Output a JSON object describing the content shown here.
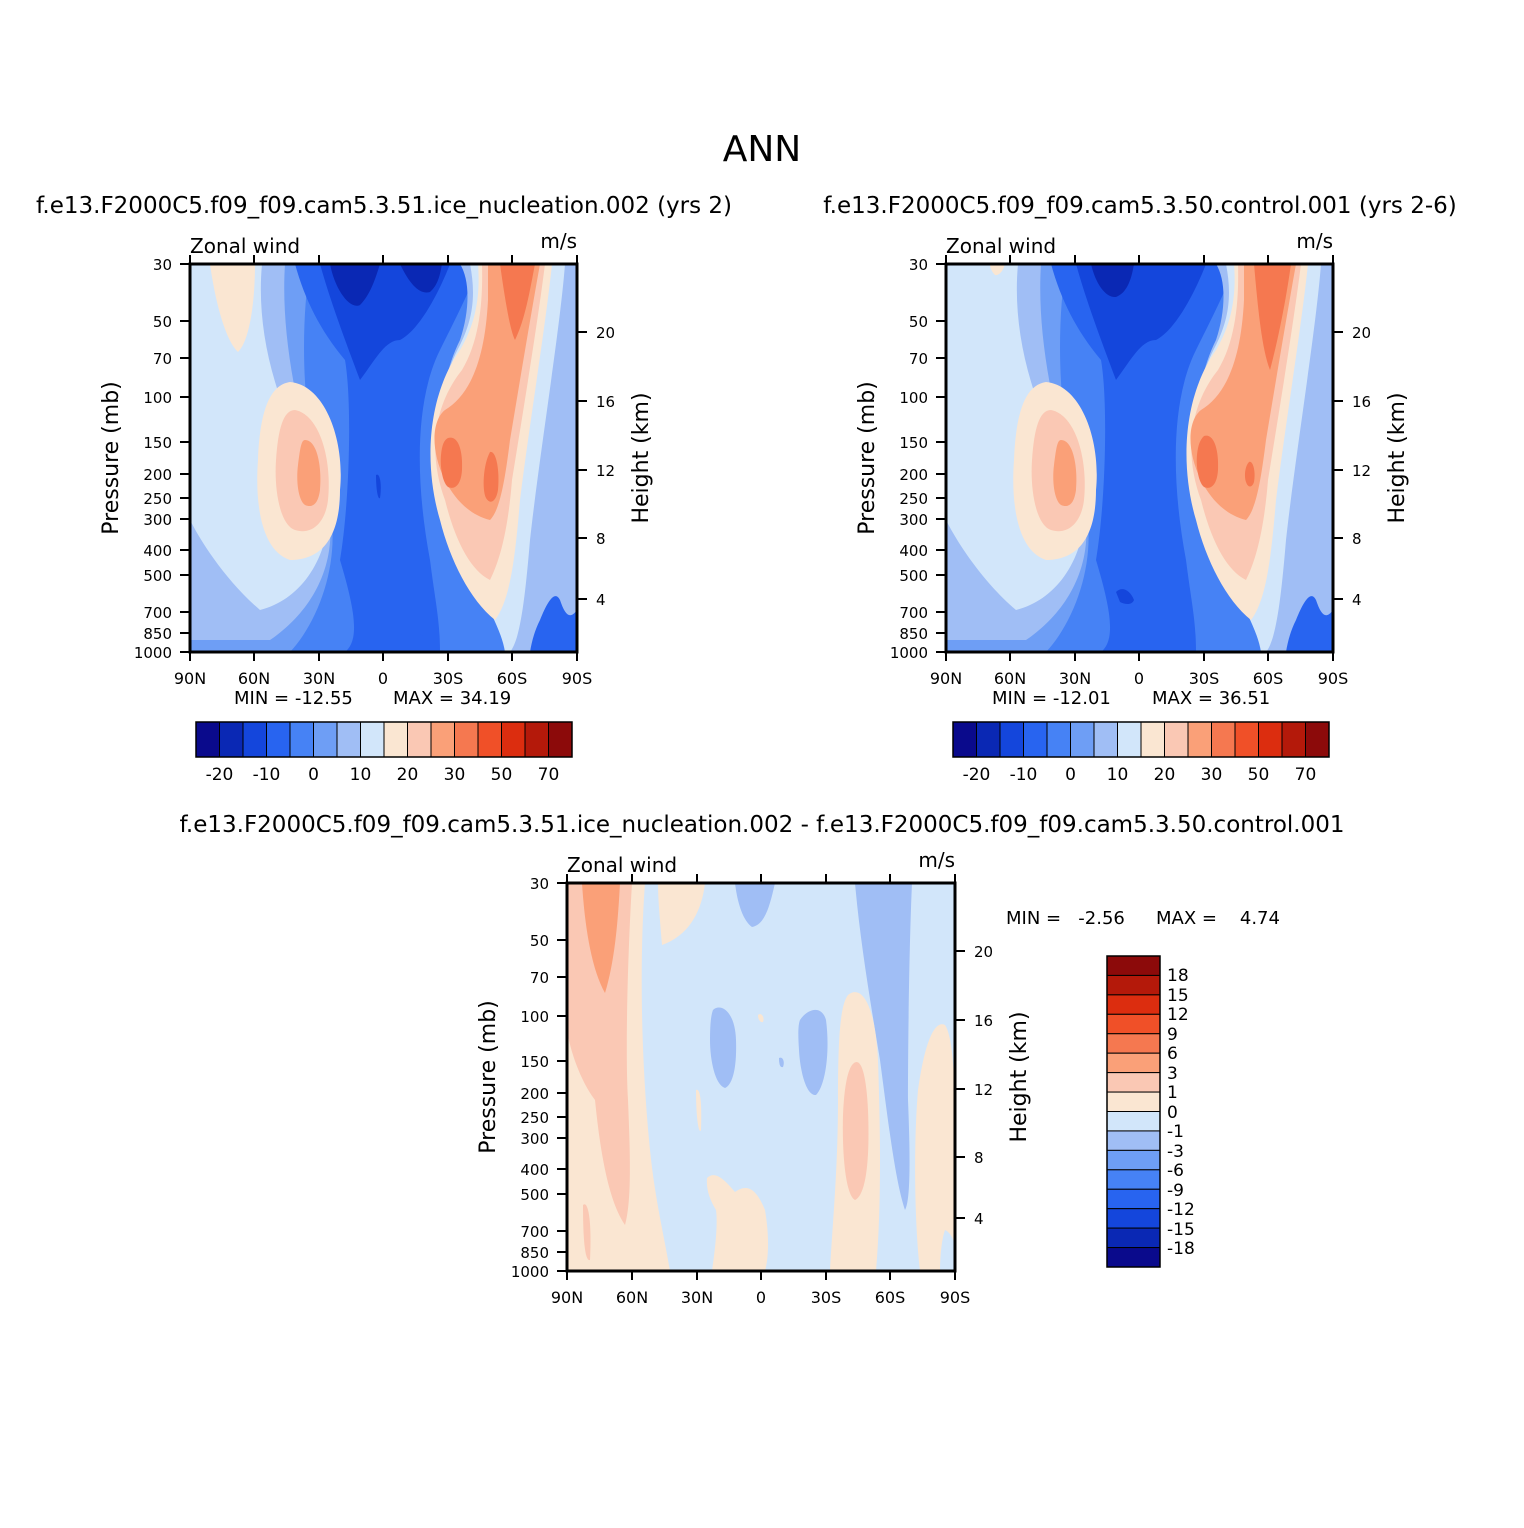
{
  "figure": {
    "season_title": "ANN",
    "colors": {
      "axis": "#000000",
      "background": "#ffffff"
    }
  },
  "chart_data": [
    {
      "id": "test",
      "type": "heatmap",
      "case_title": "f.e13.F2000C5.f09_f09.cam5.3.51.ice_nucleation.002 (yrs 2)",
      "variable_label": "Zonal wind",
      "units_label": "m/s",
      "ylabel": "Pressure (mb)",
      "ylabel_right": "Height (km)",
      "xticks": [
        "90N",
        "60N",
        "30N",
        "0",
        "30S",
        "60S",
        "90S"
      ],
      "yticks": [
        "30",
        "50",
        "70",
        "100",
        "150",
        "200",
        "250",
        "300",
        "400",
        "500",
        "700",
        "850",
        "1000"
      ],
      "right_ticks": [
        "20",
        "16",
        "12",
        "8",
        "4"
      ],
      "min_label": "MIN = -12.55",
      "max_label": "MAX = 34.19",
      "min": -12.55,
      "max": 34.19,
      "colorbar_labels": [
        "-20",
        "-10",
        "0",
        "10",
        "20",
        "30",
        "50",
        "70"
      ],
      "colorbar_colors": [
        "#0a0a8c",
        "#0a28b4",
        "#1446dc",
        "#2864f0",
        "#4682f5",
        "#6e9ef5",
        "#a0bef5",
        "#d2e6fa",
        "#fae6d2",
        "#fac8b4",
        "#faa078",
        "#f57850",
        "#f05028",
        "#dc2d0f",
        "#b4190a",
        "#8c0a0a"
      ]
    },
    {
      "id": "control",
      "type": "heatmap",
      "case_title": "f.e13.F2000C5.f09_f09.cam5.3.50.control.001 (yrs 2-6)",
      "variable_label": "Zonal wind",
      "units_label": "m/s",
      "ylabel": "Pressure (mb)",
      "ylabel_right": "Height (km)",
      "xticks": [
        "90N",
        "60N",
        "30N",
        "0",
        "30S",
        "60S",
        "90S"
      ],
      "yticks": [
        "30",
        "50",
        "70",
        "100",
        "150",
        "200",
        "250",
        "300",
        "400",
        "500",
        "700",
        "850",
        "1000"
      ],
      "right_ticks": [
        "20",
        "16",
        "12",
        "8",
        "4"
      ],
      "min_label": "MIN = -12.01",
      "max_label": "MAX = 36.51",
      "min": -12.01,
      "max": 36.51,
      "colorbar_labels": [
        "-20",
        "-10",
        "0",
        "10",
        "20",
        "30",
        "50",
        "70"
      ],
      "colorbar_colors": [
        "#0a0a8c",
        "#0a28b4",
        "#1446dc",
        "#2864f0",
        "#4682f5",
        "#6e9ef5",
        "#a0bef5",
        "#d2e6fa",
        "#fae6d2",
        "#fac8b4",
        "#faa078",
        "#f57850",
        "#f05028",
        "#dc2d0f",
        "#b4190a",
        "#8c0a0a"
      ]
    },
    {
      "id": "diff",
      "type": "heatmap",
      "case_title": "f.e13.F2000C5.f09_f09.cam5.3.51.ice_nucleation.002 - f.e13.F2000C5.f09_f09.cam5.3.50.control.001",
      "variable_label": "Zonal wind",
      "units_label": "m/s",
      "ylabel": "Pressure (mb)",
      "ylabel_right": "Height (km)",
      "xticks": [
        "90N",
        "60N",
        "30N",
        "0",
        "30S",
        "60S",
        "90S"
      ],
      "yticks": [
        "30",
        "50",
        "70",
        "100",
        "150",
        "200",
        "250",
        "300",
        "400",
        "500",
        "700",
        "850",
        "1000"
      ],
      "right_ticks": [
        "20",
        "16",
        "12",
        "8",
        "4"
      ],
      "min_label": "MIN =   -2.56",
      "max_label": "MAX =    4.74",
      "min": -2.56,
      "max": 4.74,
      "colorbar_labels": [
        "18",
        "15",
        "12",
        "9",
        "6",
        "3",
        "1",
        "0",
        "-1",
        "-3",
        "-6",
        "-9",
        "-12",
        "-15",
        "-18"
      ],
      "colorbar_colors": [
        "#8c0a0a",
        "#b4190a",
        "#dc2d0f",
        "#f05028",
        "#f57850",
        "#faa078",
        "#fac8b4",
        "#fae6d2",
        "#d2e6fa",
        "#a0bef5",
        "#6e9ef5",
        "#4682f5",
        "#2864f0",
        "#1446dc",
        "#0a28b4",
        "#0a0a8c"
      ]
    }
  ]
}
